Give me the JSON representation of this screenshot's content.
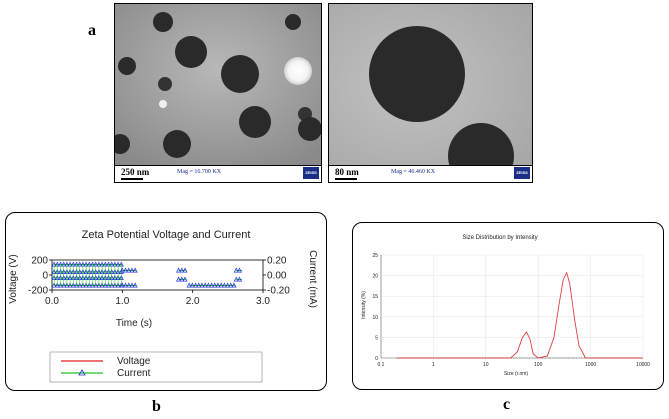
{
  "figure": {
    "label_a": "a",
    "label_b": "b",
    "label_c": "c"
  },
  "tem_images": [
    {
      "scale": "250 nm",
      "mag": "Mag = 16.700 KX",
      "logo": "ZEISS"
    },
    {
      "scale": "80 nm",
      "mag": "Mag = 46.460 KX",
      "logo": "ZEISS"
    }
  ],
  "chart_data": [
    {
      "type": "line",
      "title": "Zeta Potential Voltage and Current",
      "xlabel": "Time (s)",
      "ylabel": "Voltage (V)",
      "y2label": "Current (mA)",
      "xlim": [
        0,
        3.0
      ],
      "ylim": [
        -200,
        200
      ],
      "y2lim": [
        -0.2,
        0.2
      ],
      "xticks": [
        "0.0",
        "1.0",
        "2.0",
        "3.0"
      ],
      "yticks": [
        "200",
        "0",
        "-200"
      ],
      "y2ticks": [
        "0.20",
        "0.00",
        "-0.20"
      ],
      "series": [
        {
          "name": "Voltage",
          "color": "#e02020",
          "x": [],
          "y": []
        },
        {
          "name": "Current",
          "color": "#20c020",
          "marker_color": "#2030e0",
          "segments": [
            {
              "x": [
                0.03,
                1.0
              ],
              "levels": [
                0.14,
                0.04,
                -0.04,
                -0.14
              ]
            },
            {
              "x": [
                1.0,
                1.2
              ],
              "levels": [
                0.06,
                -0.14
              ]
            },
            {
              "x": [
                1.8,
                1.9
              ],
              "levels": [
                0.06,
                -0.06
              ]
            },
            {
              "x": [
                1.95,
                2.6
              ],
              "levels": [
                -0.14
              ]
            },
            {
              "x": [
                2.62,
                2.7
              ],
              "levels": [
                0.06,
                -0.06
              ]
            }
          ]
        }
      ],
      "legend": {
        "placement": "bottom",
        "entries": [
          "Voltage",
          "Current"
        ]
      }
    },
    {
      "type": "line",
      "title": "Size Distribution by Intensity",
      "xlabel": "Size (r.nm)",
      "ylabel": "Intensity (%)",
      "xscale": "log",
      "xlim": [
        0.1,
        10000
      ],
      "ylim": [
        0,
        25
      ],
      "xticks": [
        "0.1",
        "1",
        "10",
        "100",
        "1000",
        "10000"
      ],
      "yticks": [
        "0",
        "5",
        "10",
        "15",
        "20",
        "25"
      ],
      "series": [
        {
          "color": "#e04040",
          "x": [
            0.2,
            30,
            40,
            50,
            60,
            70,
            80,
            100,
            150,
            200,
            250,
            300,
            350,
            400,
            500,
            600,
            800,
            1000,
            10000
          ],
          "y": [
            0,
            0,
            1.5,
            5,
            6.3,
            4.5,
            1.0,
            0,
            0.5,
            5,
            13,
            19,
            20.7,
            18,
            9,
            3,
            0,
            0,
            0
          ]
        }
      ]
    }
  ]
}
